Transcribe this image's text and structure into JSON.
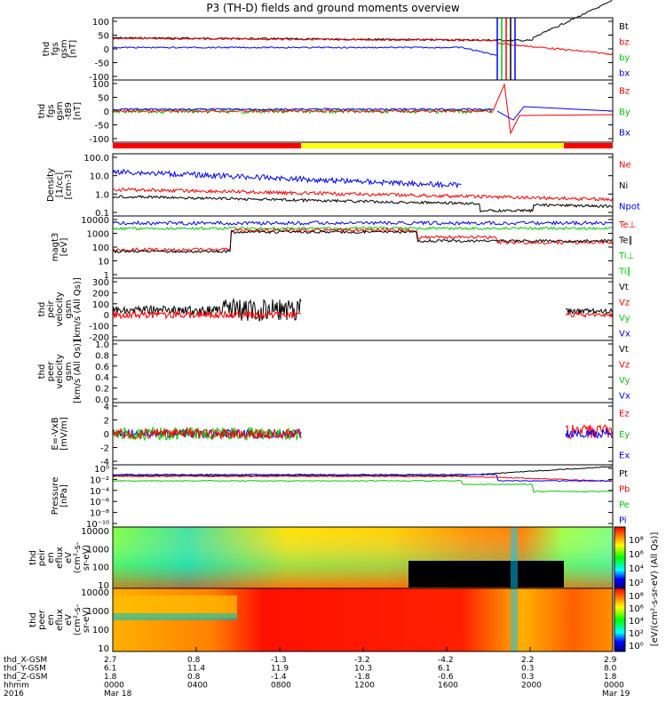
{
  "title": "P3 (TH-D) fields and ground moments overview",
  "chart_data": {
    "type": "line",
    "x_tick_labels": {
      "thd_X-GSM": [
        "2.7",
        "0.8",
        "-1.3",
        "-3.2",
        "-4.2",
        "2.2",
        "2.9"
      ],
      "thd_Y-GSM": [
        "6.1",
        "11.4",
        "11.9",
        "10.3",
        "6.1",
        "0.3",
        "8.0"
      ],
      "thd_Z-GSM": [
        "1.8",
        "0.8",
        "-1.4",
        "-1.8",
        "-0.6",
        "0.3",
        "1.8"
      ],
      "hhmm": [
        "0000",
        "0400",
        "0800",
        "1200",
        "1600",
        "2000",
        "0000"
      ]
    },
    "x_row_labels": [
      "thd_X-GSM",
      "thd_Y-GSM",
      "thd_Z-GSM",
      "hhmm",
      "2016"
    ],
    "date_labels": [
      "Mar 18",
      "Mar 19"
    ],
    "panels": [
      {
        "id": "fgs",
        "ylabel": [
          "thd",
          "fgs",
          "gsm",
          "[nT]"
        ],
        "yticks": [
          "100",
          "50",
          "0",
          "-50",
          "-100"
        ],
        "legend": [
          {
            "label": "Bt",
            "color": "#000000"
          },
          {
            "label": "bz",
            "color": "#ff0000"
          },
          {
            "label": "by",
            "color": "#00cc00"
          },
          {
            "label": "bx",
            "color": "#0000ff"
          }
        ]
      },
      {
        "id": "fgs-t89",
        "ylabel": [
          "thd",
          "fgs",
          "gsm",
          "-t89",
          "[nT]"
        ],
        "yticks": [
          "100",
          "50",
          "0",
          "-50",
          "-100"
        ],
        "legend": [
          {
            "label": "Bz",
            "color": "#ff0000"
          },
          {
            "label": "By",
            "color": "#00cc00"
          },
          {
            "label": "Bx",
            "color": "#0000ff"
          }
        ]
      },
      {
        "id": "density",
        "ylabel": [
          "Density",
          "[1/cc]",
          "[cm-3]"
        ],
        "yticks": [
          "100.0",
          "10.0",
          "1.0",
          "0.1"
        ],
        "legend": [
          {
            "label": "Ne",
            "color": "#ff0000"
          },
          {
            "label": "Ni",
            "color": "#000000"
          },
          {
            "label": "Npot",
            "color": "#0000ff"
          }
        ]
      },
      {
        "id": "temp",
        "ylabel": [
          "magt3",
          "[eV]"
        ],
        "yticks": [
          "10000",
          "1000",
          "100",
          "10",
          "1"
        ],
        "legend": [
          {
            "label": "Te⊥",
            "color": "#ff0000"
          },
          {
            "label": "Te∥",
            "color": "#000000"
          },
          {
            "label": "Ti⊥",
            "color": "#00cc00"
          },
          {
            "label": "Ti∥",
            "color": "#00cc00"
          }
        ]
      },
      {
        "id": "ion-vel",
        "ylabel": [
          "thd",
          "peir",
          "velocity",
          "gsm",
          "[km/s (All Qs)]"
        ],
        "yticks": [
          "300",
          "200",
          "100",
          "0",
          "-100",
          "-200"
        ],
        "legend": [
          {
            "label": "Vt",
            "color": "#000000"
          },
          {
            "label": "Vz",
            "color": "#ff0000"
          },
          {
            "label": "Vy",
            "color": "#00cc00"
          },
          {
            "label": "Vx",
            "color": "#0000ff"
          }
        ]
      },
      {
        "id": "elec-vel",
        "ylabel": [
          "thd",
          "peer",
          "velocity",
          "gsm",
          "[km/s (All Qs)]"
        ],
        "yticks": [
          "1.0",
          "0.8",
          "0.6",
          "0.4",
          "0.2",
          "0.0"
        ],
        "legend": [
          {
            "label": "Vt",
            "color": "#000000"
          },
          {
            "label": "Vz",
            "color": "#ff0000"
          },
          {
            "label": "Vy",
            "color": "#00cc00"
          },
          {
            "label": "Vx",
            "color": "#0000ff"
          }
        ]
      },
      {
        "id": "efield",
        "ylabel": [
          "E=-VxB",
          "[mV/m]"
        ],
        "yticks": [
          "4",
          "2",
          "0",
          "-2",
          "-4"
        ],
        "legend": [
          {
            "label": "Ez",
            "color": "#ff0000"
          },
          {
            "label": "Ey",
            "color": "#00cc00"
          },
          {
            "label": "Ex",
            "color": "#0000ff"
          }
        ]
      },
      {
        "id": "pressure",
        "ylabel": [
          "Pressure",
          "[nPa]"
        ],
        "yticks": [
          "10⁰",
          "10⁻²",
          "10⁻⁴",
          "10⁻⁶",
          "10⁻⁸",
          "10⁻¹⁰"
        ],
        "legend": [
          {
            "label": "Pt",
            "color": "#000000"
          },
          {
            "label": "Pb",
            "color": "#ff0000"
          },
          {
            "label": "Pe",
            "color": "#00cc00"
          },
          {
            "label": "Pi",
            "color": "#0000ff"
          }
        ]
      },
      {
        "id": "ion-spec",
        "ylabel": [
          "thd",
          "peir",
          "en",
          "eflux",
          "eV",
          "(cm²-s-",
          "sr-eV)"
        ],
        "yticks": [
          "10000",
          "1000",
          "100",
          "10"
        ]
      },
      {
        "id": "elec-spec",
        "ylabel": [
          "thd",
          "peer",
          "en",
          "eflux",
          "eV",
          "(cm²-s-",
          "sr-eV)"
        ],
        "yticks": [
          "10000",
          "1000",
          "100",
          "10"
        ]
      }
    ],
    "colorbar": {
      "label": "[eV/(cm²-s-sr-eV) (All Qs)]",
      "ion_ticks": [
        "10⁸",
        "10⁶",
        "10⁴",
        "10²"
      ],
      "elec_ticks": [
        "10⁸",
        "10⁶",
        "10⁴",
        "10²",
        "10⁰"
      ]
    }
  }
}
